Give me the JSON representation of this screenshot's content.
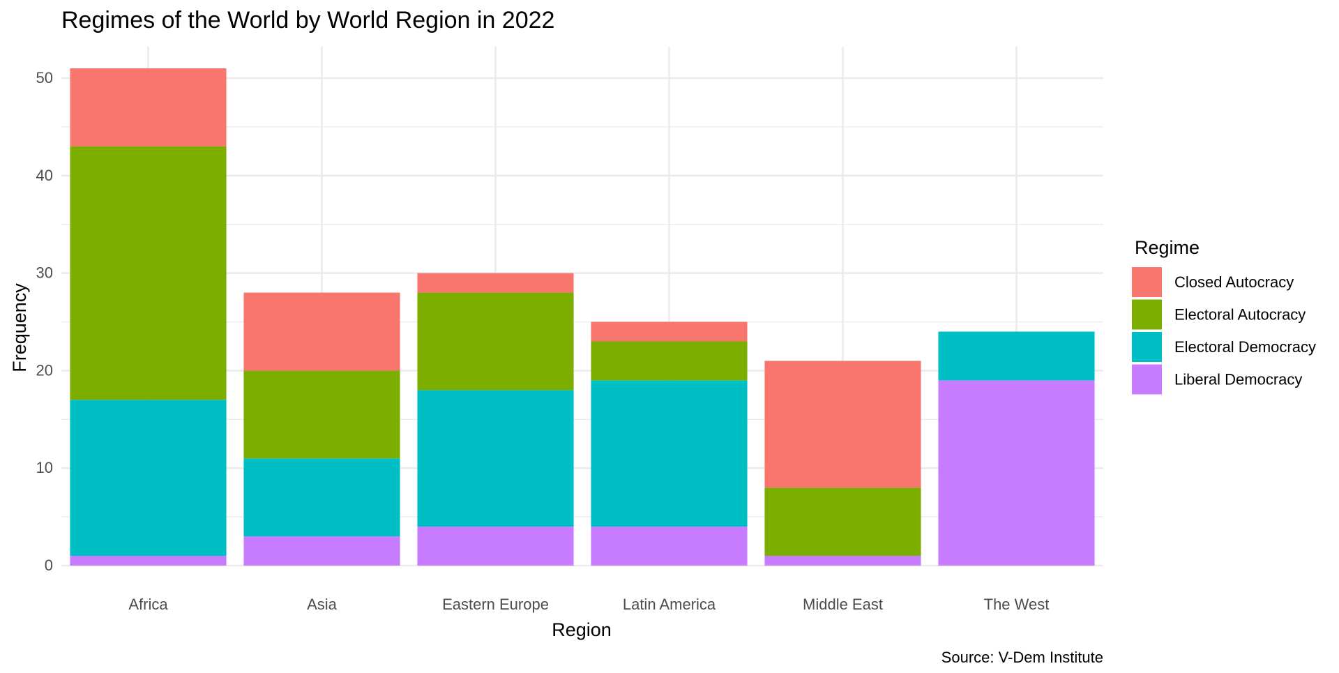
{
  "chart_data": {
    "type": "bar",
    "stacked": true,
    "title": "Regimes of the World by World Region in 2022",
    "xlabel": "Region",
    "ylabel": "Frequency",
    "caption": "Source: V-Dem Institute",
    "categories": [
      "Africa",
      "Asia",
      "Eastern Europe",
      "Latin America",
      "Middle East",
      "The West"
    ],
    "ylim": [
      0,
      52.5
    ],
    "yticks": [
      0,
      10,
      20,
      30,
      40,
      50
    ],
    "grid": true,
    "legend": {
      "title": "Regime",
      "position": "right"
    },
    "series": [
      {
        "name": "Liberal Democracy",
        "color": "#C77CFF",
        "values": [
          1,
          3,
          4,
          4,
          1,
          19
        ]
      },
      {
        "name": "Electoral Democracy",
        "color": "#00BFC4",
        "values": [
          16,
          8,
          14,
          15,
          0,
          5
        ]
      },
      {
        "name": "Electoral Autocracy",
        "color": "#7CAE00",
        "values": [
          26,
          9,
          10,
          4,
          7,
          0
        ]
      },
      {
        "name": "Closed Autocracy",
        "color": "#F8766D",
        "values": [
          8,
          8,
          2,
          2,
          13,
          0
        ]
      }
    ],
    "legend_order": [
      "Closed Autocracy",
      "Electoral Autocracy",
      "Electoral Democracy",
      "Liberal Democracy"
    ]
  }
}
